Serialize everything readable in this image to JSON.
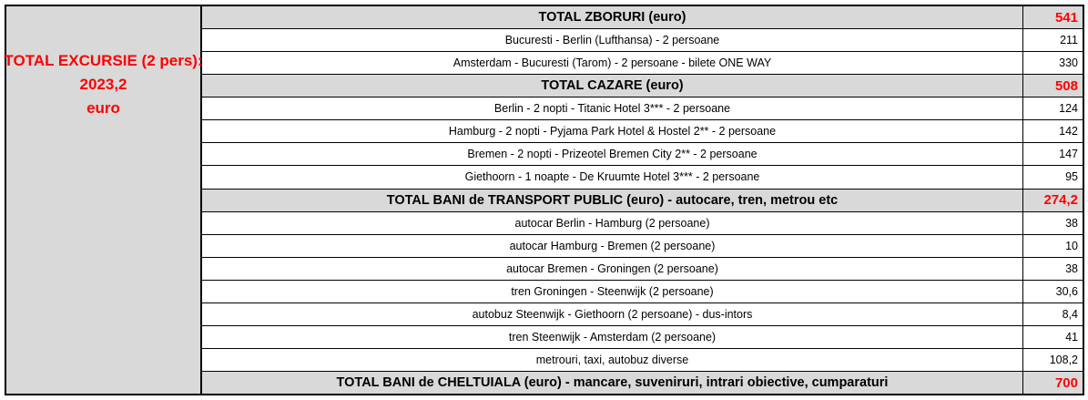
{
  "summary_panel": {
    "title": "TOTAL EXCURSIE (2 pers):",
    "amount": "2023,2",
    "currency": "euro"
  },
  "colors": {
    "accent_red": "#ff0000",
    "section_gray": "#d9d9d9",
    "grid_black": "#000000"
  },
  "table": {
    "rows": [
      {
        "type": "section",
        "label": "TOTAL ZBORURI (euro)",
        "value": "541"
      },
      {
        "type": "item",
        "label": "Bucuresti - Berlin (Lufthansa) - 2 persoane",
        "value": "211"
      },
      {
        "type": "item",
        "label": "Amsterdam - Bucuresti (Tarom) - 2 persoane - bilete ONE WAY",
        "value": "330"
      },
      {
        "type": "section",
        "label": "TOTAL CAZARE (euro)",
        "value": "508"
      },
      {
        "type": "item",
        "label": "Berlin - 2 nopti - Titanic Hotel 3*** - 2 persoane",
        "value": "124"
      },
      {
        "type": "item",
        "label": "Hamburg - 2 nopti - Pyjama Park Hotel & Hostel 2** - 2 persoane",
        "value": "142"
      },
      {
        "type": "item",
        "label": "Bremen - 2 nopti - Prizeotel Bremen City 2** - 2 persoane",
        "value": "147"
      },
      {
        "type": "item",
        "label": "Giethoorn - 1 noapte - De Kruumte Hotel 3*** - 2 persoane",
        "value": "95"
      },
      {
        "type": "section",
        "label": "TOTAL BANI de TRANSPORT PUBLIC (euro) - autocare, tren, metrou etc",
        "value": "274,2"
      },
      {
        "type": "item",
        "label": "autocar Berlin - Hamburg (2 persoane)",
        "value": "38"
      },
      {
        "type": "item",
        "label": "autocar Hamburg - Bremen (2 persoane)",
        "value": "10"
      },
      {
        "type": "item",
        "label": "autocar Bremen - Groningen (2 persoane)",
        "value": "38"
      },
      {
        "type": "item",
        "label": "tren Groningen - Steenwijk (2 persoane)",
        "value": "30,6"
      },
      {
        "type": "item",
        "label": "autobuz Steenwijk - Giethoorn (2 persoane) - dus-intors",
        "value": "8,4"
      },
      {
        "type": "item",
        "label": "tren Steenwijk - Amsterdam (2 persoane)",
        "value": "41"
      },
      {
        "type": "item",
        "label": "metrouri, taxi, autobuz diverse",
        "value": "108,2"
      },
      {
        "type": "section",
        "label": "TOTAL BANI de CHELTUIALA (euro) - mancare, suveniruri, intrari obiective, cumparaturi",
        "value": "700"
      }
    ]
  }
}
